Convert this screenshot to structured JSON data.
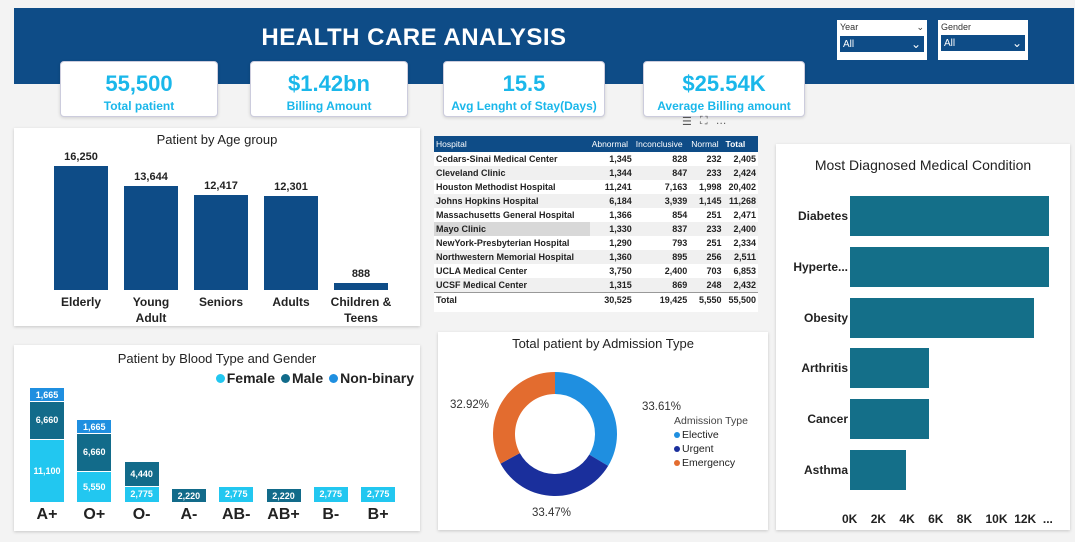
{
  "header": {
    "title": "HEALTH CARE ANALYSIS",
    "bg": "#0e4c87"
  },
  "slicers": [
    {
      "label": "Year",
      "value": "All"
    },
    {
      "label": "Gender",
      "value": "All"
    }
  ],
  "kpis": [
    {
      "value": "55,500",
      "label": "Total patient"
    },
    {
      "value": "$1.42bn",
      "label": "Billing Amount"
    },
    {
      "value": "15.5",
      "label": "Avg Lenght of Stay(Days)"
    },
    {
      "value": "$25.54K",
      "label": "Average Billing amount"
    }
  ],
  "visual_toolbar": {
    "icons": [
      "filter-icon",
      "focus-mode-icon",
      "more-options-icon"
    ],
    "more_label": "…"
  },
  "age_chart": {
    "title": "Patient by Age group",
    "chart_data": {
      "type": "bar",
      "categories": [
        "Elderly",
        "Young Adult",
        "Seniors",
        "Adults",
        "Children & Teens"
      ],
      "category_lines": [
        [
          "Elderly"
        ],
        [
          "Young",
          "Adult"
        ],
        [
          "Seniors"
        ],
        [
          "Adults"
        ],
        [
          "Children &",
          "Teens"
        ]
      ],
      "values": [
        16250,
        13644,
        12417,
        12301,
        888
      ],
      "labels": [
        "16,250",
        "13,644",
        "12,417",
        "12,301",
        "888"
      ],
      "ylim": [
        0,
        16250
      ]
    }
  },
  "hospital_table": {
    "columns": [
      "Hospital",
      "Abnormal",
      "Inconclusive",
      "Normal",
      "Total"
    ],
    "rows": [
      [
        "Cedars-Sinai Medical Center",
        "1,345",
        "828",
        "232",
        "2,405"
      ],
      [
        "Cleveland Clinic",
        "1,344",
        "847",
        "233",
        "2,424"
      ],
      [
        "Houston Methodist Hospital",
        "11,241",
        "7,163",
        "1,998",
        "20,402"
      ],
      [
        "Johns Hopkins Hospital",
        "6,184",
        "3,939",
        "1,145",
        "11,268"
      ],
      [
        "Massachusetts General Hospital",
        "1,366",
        "854",
        "251",
        "2,471"
      ],
      [
        "Mayo Clinic",
        "1,330",
        "837",
        "233",
        "2,400"
      ],
      [
        "NewYork-Presbyterian Hospital",
        "1,290",
        "793",
        "251",
        "2,334"
      ],
      [
        "Northwestern Memorial Hospital",
        "1,360",
        "895",
        "256",
        "2,511"
      ],
      [
        "UCLA Medical Center",
        "3,750",
        "2,400",
        "703",
        "6,853"
      ],
      [
        "UCSF Medical Center",
        "1,315",
        "869",
        "248",
        "2,432"
      ]
    ],
    "total": [
      "Total",
      "30,525",
      "19,425",
      "5,550",
      "55,500"
    ]
  },
  "condition_chart": {
    "title": "Most Diagnosed Medical Condition",
    "chart_data": {
      "type": "bar",
      "orientation": "horizontal",
      "categories": [
        "Diabetes",
        "Hyperte...",
        "Obesity",
        "Arthritis",
        "Cancer",
        "Asthma"
      ],
      "values": [
        13900,
        13900,
        12900,
        5550,
        5550,
        3900
      ],
      "xlim": [
        0,
        14000
      ],
      "xticks": [
        "0K",
        "2K",
        "4K",
        "6K",
        "8K",
        "10K",
        "12K",
        "..."
      ],
      "color": "#146f89"
    }
  },
  "blood_chart": {
    "title": "Patient by Blood Type and Gender",
    "legend": [
      {
        "name": "Female",
        "color": "#22c7f0"
      },
      {
        "name": "Male",
        "color": "#126b8a"
      },
      {
        "name": "Non-binary",
        "color": "#1f8fe0"
      }
    ],
    "chart_data": {
      "type": "bar",
      "stacked": true,
      "categories": [
        "A+",
        "O+",
        "O-",
        "A-",
        "AB-",
        "AB+",
        "B-",
        "B+"
      ],
      "series": [
        {
          "name": "Female",
          "values": [
            11100,
            5550,
            2775,
            0,
            2775,
            0,
            2775,
            2775
          ],
          "labels": [
            "11,100",
            "5,550",
            "2,775",
            "",
            "2,775",
            "",
            "2,775",
            "2,775"
          ],
          "color": "#22c7f0"
        },
        {
          "name": "Male",
          "values": [
            6660,
            6660,
            4440,
            2220,
            0,
            2220,
            0,
            0
          ],
          "labels": [
            "6,660",
            "6,660",
            "4,440",
            "2,220",
            "",
            "2,220",
            "",
            ""
          ],
          "color": "#126b8a"
        },
        {
          "name": "Non-binary",
          "values": [
            1665,
            1665,
            0,
            0,
            0,
            0,
            0,
            0
          ],
          "labels": [
            "1,665",
            "1,665",
            "",
            "",
            "",
            "",
            "",
            ""
          ],
          "color": "#1f8fe0"
        }
      ],
      "ymax": 19425
    }
  },
  "admission_chart": {
    "title": "Total patient by Admission Type",
    "legend_title": "Admission Type",
    "chart_data": {
      "type": "pie",
      "donut": true,
      "labels": [
        "Elective",
        "Urgent",
        "Emergency"
      ],
      "values": [
        33.61,
        33.47,
        32.92
      ],
      "value_labels": [
        "33.61%",
        "33.47%",
        "32.92%"
      ],
      "colors": [
        "#1f8fe0",
        "#1a2f9c",
        "#e36c2f"
      ]
    }
  }
}
